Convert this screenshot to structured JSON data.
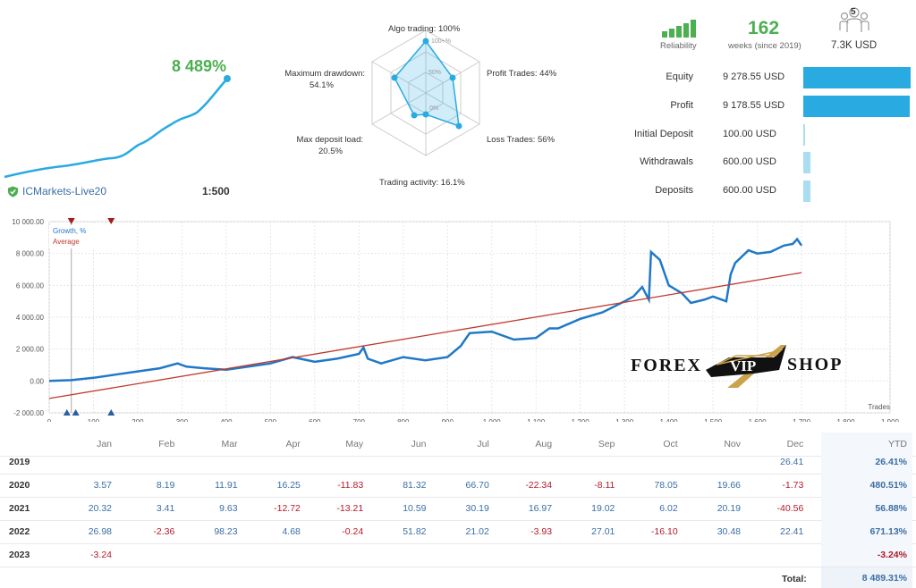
{
  "summary": {
    "growth_pct": "8 489%",
    "broker": "ICMarkets-Live20",
    "leverage": "1:500",
    "reliability_label": "Reliability",
    "weeks_value": "162",
    "weeks_label": "weeks (since 2019)",
    "subscribers_count": "5",
    "subscribers_label": "7.3K USD",
    "colors": {
      "green": "#4caf50",
      "blue": "#29abe2",
      "red": "#c0392b"
    }
  },
  "radar": {
    "labels": {
      "algo": "Algo trading: 100%",
      "profit_trades": "Profit Trades: 44%",
      "loss_trades": "Loss Trades: 56%",
      "activity": "Trading activity: 16.1%",
      "deposit_load_name": "Max deposit load:",
      "deposit_load_val": "20.5%",
      "drawdown_name": "Maximum drawdown:",
      "drawdown_val": "54.1%"
    },
    "ticks": [
      "100+%",
      "50%",
      "0%"
    ],
    "values": [
      100,
      44,
      56,
      16.1,
      20.5,
      54.1
    ]
  },
  "stats": [
    {
      "label": "Equity",
      "value": "9 278.55 USD",
      "fill": 1.0
    },
    {
      "label": "Profit",
      "value": "9 178.55 USD",
      "fill": 0.99
    },
    {
      "label": "Initial Deposit",
      "value": "100.00 USD",
      "fill": 0.011
    },
    {
      "label": "Withdrawals",
      "value": "600.00 USD",
      "fill": 0.065
    },
    {
      "label": "Deposits",
      "value": "600.00 USD",
      "fill": 0.065
    }
  ],
  "chart_data": {
    "type": "line",
    "legend": [
      "Growth, %",
      "Average"
    ],
    "xlabel": "Trades",
    "xlim": [
      0,
      1900
    ],
    "ylim": [
      -2000,
      10000
    ],
    "x_ticks": [
      "0",
      "100",
      "200",
      "300",
      "400",
      "500",
      "600",
      "700",
      "800",
      "900",
      "1 000",
      "1 100",
      "1 200",
      "1 300",
      "1 400",
      "1 500",
      "1 600",
      "1 700",
      "1 800",
      "1 900"
    ],
    "y_ticks": [
      "10 000.00",
      "8 000.00",
      "6 000.00",
      "4 000.00",
      "2 000.00",
      "0.00",
      "-2 000.00"
    ],
    "series": [
      {
        "name": "Growth, %",
        "color": "#1f78c8",
        "x": [
          0,
          50,
          100,
          150,
          200,
          250,
          290,
          310,
          350,
          400,
          450,
          500,
          550,
          600,
          650,
          700,
          710,
          720,
          750,
          800,
          850,
          900,
          930,
          950,
          1000,
          1050,
          1100,
          1130,
          1150,
          1200,
          1250,
          1300,
          1320,
          1340,
          1355,
          1360,
          1380,
          1400,
          1430,
          1450,
          1480,
          1500,
          1530,
          1540,
          1550,
          1580,
          1600,
          1630,
          1660,
          1680,
          1690,
          1700
        ],
        "y": [
          0,
          50,
          200,
          400,
          600,
          800,
          1100,
          900,
          800,
          700,
          900,
          1100,
          1500,
          1200,
          1400,
          1700,
          2100,
          1400,
          1100,
          1500,
          1300,
          1500,
          2200,
          3000,
          3100,
          2600,
          2700,
          3300,
          3300,
          3900,
          4300,
          5000,
          5300,
          5900,
          5100,
          8100,
          7600,
          6000,
          5500,
          4900,
          5100,
          5300,
          5000,
          6700,
          7400,
          8200,
          8000,
          8100,
          8500,
          8600,
          8900,
          8500
        ]
      },
      {
        "name": "Average",
        "color": "#c0392b",
        "x": [
          0,
          1700
        ],
        "y": [
          -1100,
          6800
        ]
      }
    ],
    "markers_top_x": [
      50,
      140
    ],
    "markers_bottom_x": [
      40,
      60,
      140
    ]
  },
  "table": {
    "months": [
      "Jan",
      "Feb",
      "Mar",
      "Apr",
      "May",
      "Jun",
      "Jul",
      "Aug",
      "Sep",
      "Oct",
      "Nov",
      "Dec"
    ],
    "ytd_label": "YTD",
    "rows": [
      {
        "year": "2019",
        "vals": [
          "",
          "",
          "",
          "",
          "",
          "",
          "",
          "",
          "",
          "",
          "",
          "26.41"
        ],
        "ytd": "26.41%"
      },
      {
        "year": "2020",
        "vals": [
          "3.57",
          "8.19",
          "11.91",
          "16.25",
          "-11.83",
          "81.32",
          "66.70",
          "-22.34",
          "-8.11",
          "78.05",
          "19.66",
          "-1.73"
        ],
        "ytd": "480.51%"
      },
      {
        "year": "2021",
        "vals": [
          "20.32",
          "3.41",
          "9.63",
          "-12.72",
          "-13.21",
          "10.59",
          "30.19",
          "16.97",
          "19.02",
          "6.02",
          "20.19",
          "-40.56"
        ],
        "ytd": "56.88%"
      },
      {
        "year": "2022",
        "vals": [
          "26.98",
          "-2.36",
          "98.23",
          "4.68",
          "-0.24",
          "51.82",
          "21.02",
          "-3.93",
          "27.01",
          "-16.10",
          "30.48",
          "22.41"
        ],
        "ytd": "671.13%"
      },
      {
        "year": "2023",
        "vals": [
          "-3.24",
          "",
          "",
          "",
          "",
          "",
          "",
          "",
          "",
          "",
          "",
          ""
        ],
        "ytd": "-3.24%"
      }
    ],
    "total_label": "Total:",
    "total_value": "8 489.31%"
  },
  "watermark": {
    "left": "FOREX",
    "middle": "VIP",
    "right": "SHOP"
  }
}
